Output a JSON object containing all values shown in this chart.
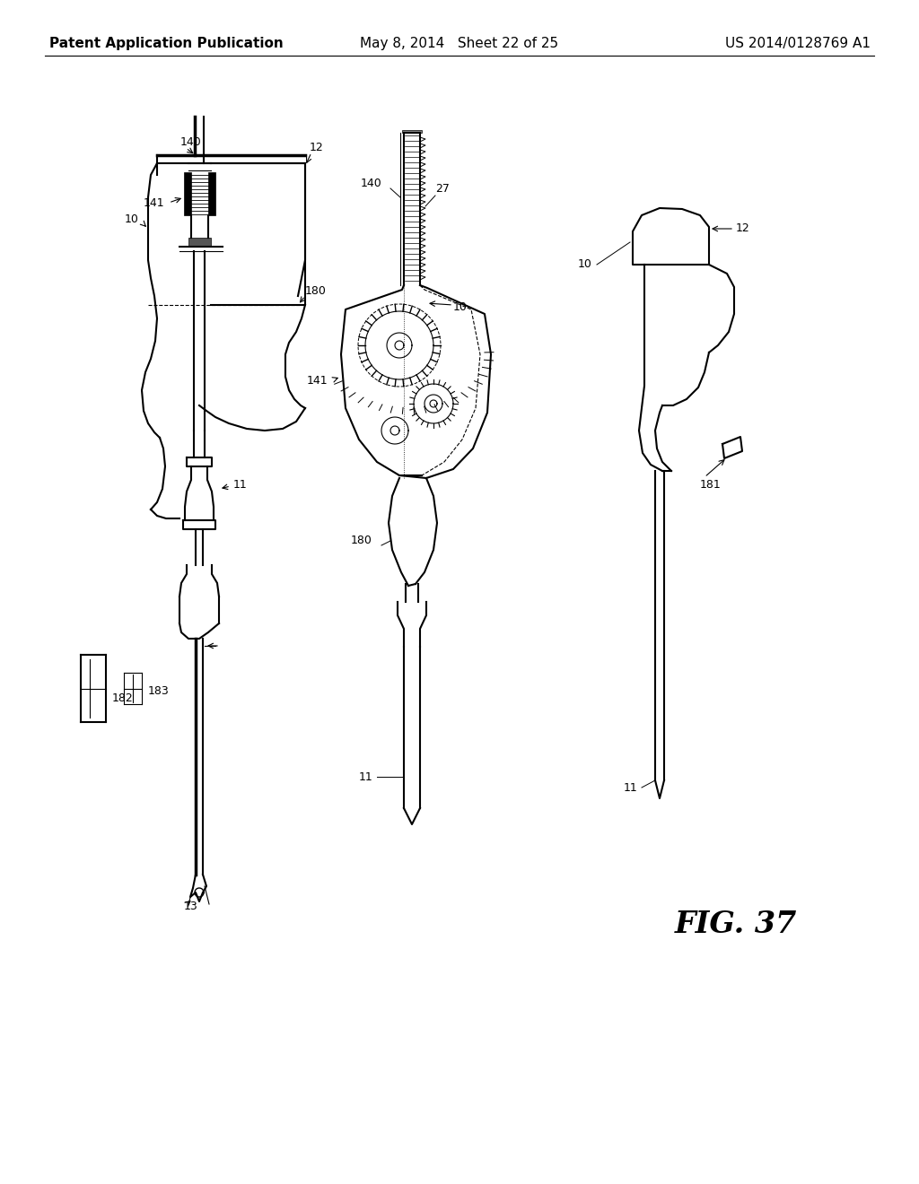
{
  "title_left": "Patent Application Publication",
  "title_center": "May 8, 2014   Sheet 22 of 25",
  "title_right": "US 2014/0128769 A1",
  "fig_label": "FIG. 37",
  "background": "#ffffff",
  "line_color": "#000000",
  "header_fontsize": 11,
  "label_fontsize": 9,
  "fig_label_fontsize": 24
}
